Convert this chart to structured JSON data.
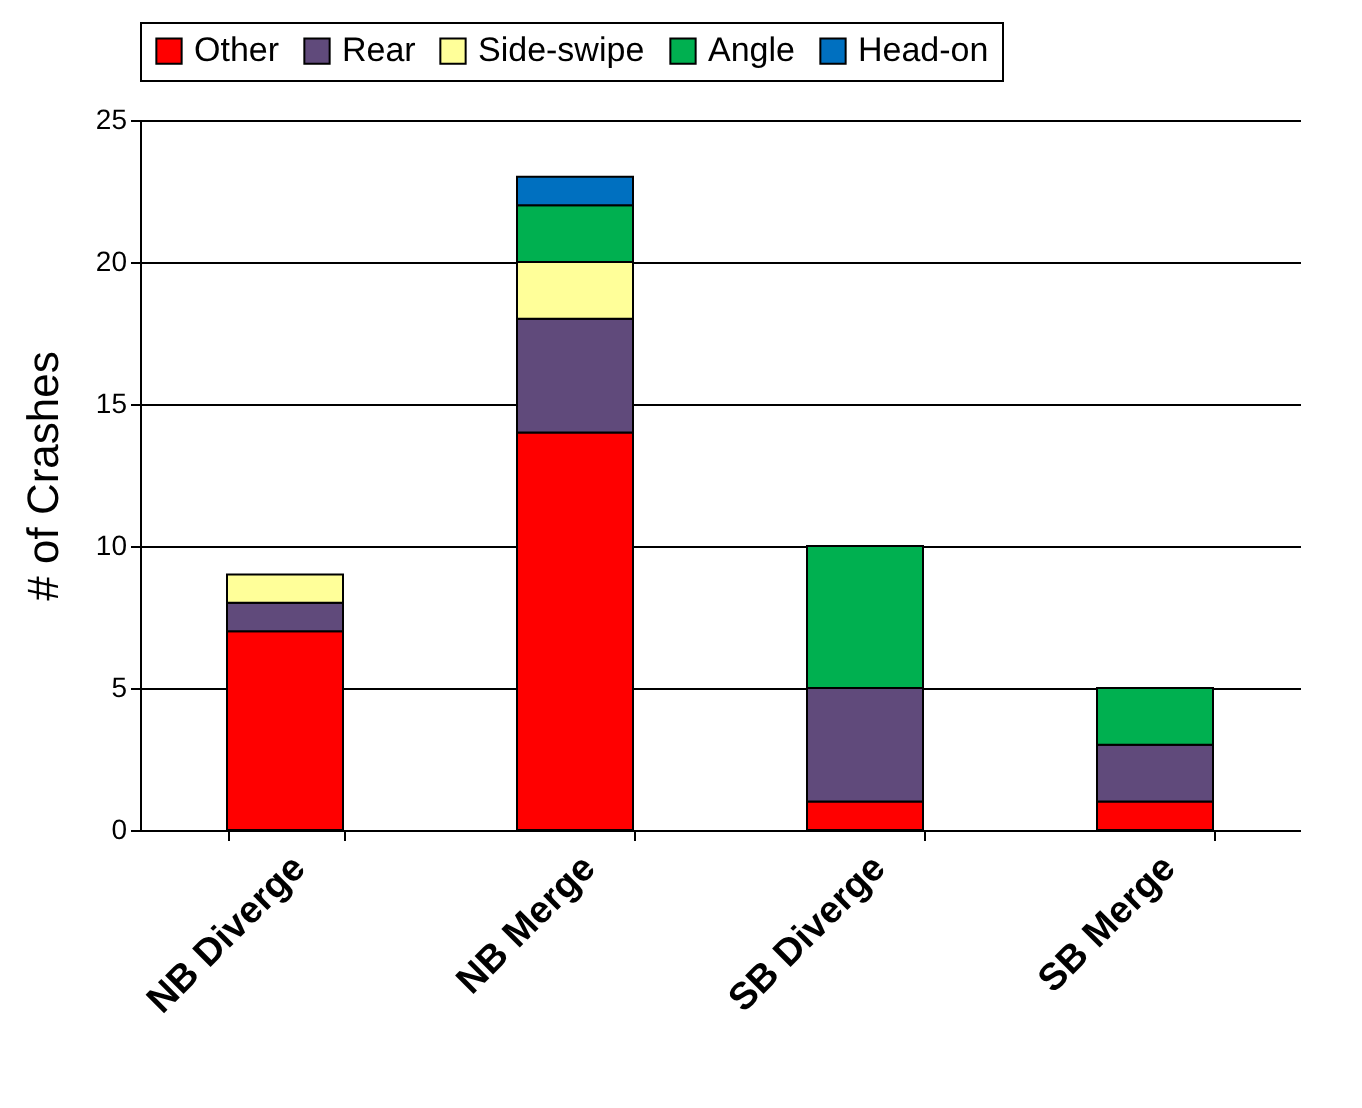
{
  "chart_data": {
    "type": "bar",
    "ylabel": "# of Crashes",
    "categories": [
      "NB Diverge",
      "NB Merge",
      "SB Diverge",
      "SB Merge"
    ],
    "stacked": true,
    "ylim": [
      0,
      25
    ],
    "yticks": [
      0,
      5,
      10,
      15,
      20,
      25
    ],
    "grid": "y",
    "legend": "top",
    "series": [
      {
        "name": "Other",
        "color": "#ff0000",
        "values": [
          7,
          14,
          1,
          1
        ]
      },
      {
        "name": "Rear",
        "color": "#604a7b",
        "values": [
          1,
          4,
          4,
          2
        ]
      },
      {
        "name": "Side-swipe",
        "color": "#ffff99",
        "values": [
          1,
          2,
          null,
          null
        ]
      },
      {
        "name": "Angle",
        "color": "#00b050",
        "values": [
          null,
          2,
          5,
          2
        ]
      },
      {
        "name": "Head-on",
        "color": "#0070c0",
        "values": [
          null,
          1,
          null,
          null
        ]
      }
    ]
  }
}
